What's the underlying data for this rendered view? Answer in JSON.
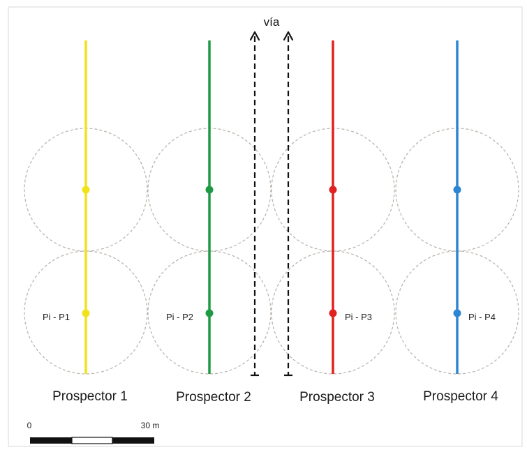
{
  "via_label": "vía",
  "prospectors": [
    {
      "id": "p1",
      "name": "Prospector 1",
      "point_label": "Pi - P1",
      "color": "#f2e21a"
    },
    {
      "id": "p2",
      "name": "Prospector 2",
      "point_label": "Pi - P2",
      "color": "#1f9a44"
    },
    {
      "id": "p3",
      "name": "Prospector 3",
      "point_label": "Pi - P3",
      "color": "#e0211f"
    },
    {
      "id": "p4",
      "name": "Prospector 4",
      "point_label": "Pi - P4",
      "color": "#2b86d4"
    }
  ],
  "scale_bar": {
    "start_label": "0",
    "end_label": "30 m"
  }
}
